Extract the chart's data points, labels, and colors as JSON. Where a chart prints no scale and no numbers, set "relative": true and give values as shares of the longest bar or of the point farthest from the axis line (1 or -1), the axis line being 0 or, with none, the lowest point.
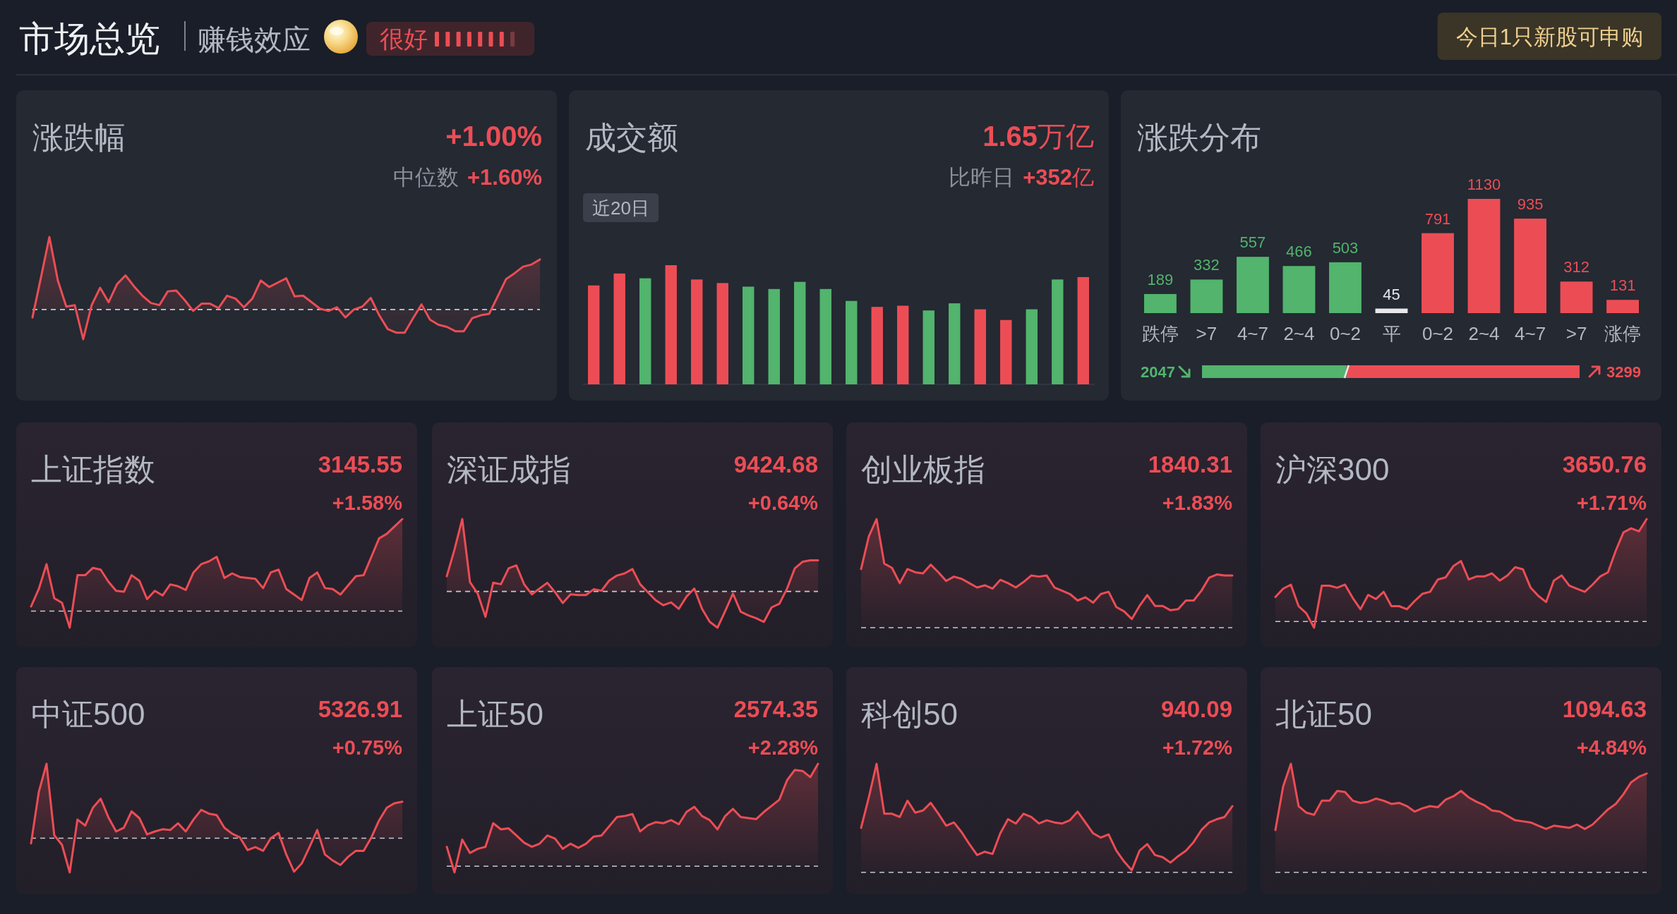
{
  "chart_data": [
    {
      "type": "other",
      "title": "市场总览",
      "annotations": [
        "赚钱效应",
        "很好",
        "今日1只新股可申购"
      ]
    },
    {
      "type": "area",
      "title": "涨跌幅",
      "annotations": [
        "+1.00%",
        "中位数 +1.60%"
      ],
      "relative": true,
      "color": "#ec4d55",
      "ref_lines": [
        {
          "axis": "y",
          "value": 0,
          "line_style": "dashed",
          "color": "#c5c9d0"
        }
      ],
      "categories": [
        null,
        null,
        null,
        null,
        null,
        null,
        null,
        null,
        null,
        null,
        null,
        null,
        null,
        null,
        null,
        null,
        null,
        null,
        null,
        null,
        null,
        null,
        null,
        null,
        null,
        null,
        null,
        null,
        null,
        null,
        null,
        null,
        null,
        null,
        null,
        null,
        null,
        null,
        null,
        null,
        null,
        null,
        null,
        null,
        null,
        null,
        null,
        null,
        null,
        null,
        null,
        null,
        null,
        null,
        null,
        null,
        null,
        null,
        null,
        null,
        null
      ],
      "values": [
        -0.11,
        0.44,
        1.0,
        0.4,
        0.04,
        0.06,
        -0.41,
        0.06,
        0.3,
        0.1,
        0.35,
        0.47,
        0.32,
        0.19,
        0.09,
        0.06,
        0.25,
        0.26,
        0.13,
        -0.02,
        0.08,
        0.08,
        0.02,
        0.19,
        0.15,
        0.03,
        0.15,
        0.4,
        0.31,
        0.37,
        0.43,
        0.18,
        0.19,
        0.1,
        0.01,
        -0.02,
        0.03,
        -0.11,
        0.0,
        0.04,
        0.16,
        -0.08,
        -0.27,
        -0.32,
        -0.32,
        -0.12,
        0.07,
        -0.14,
        -0.21,
        -0.24,
        -0.3,
        -0.3,
        -0.12,
        -0.08,
        -0.06,
        0.18,
        0.42,
        0.5,
        0.59,
        0.62,
        0.69
      ]
    },
    {
      "type": "bar",
      "title": "成交额",
      "annotations": [
        "1.65万亿",
        "比昨日 +352亿",
        "近20日"
      ],
      "relative": true,
      "categories": [
        null,
        null,
        null,
        null,
        null,
        null,
        null,
        null,
        null,
        null,
        null,
        null,
        null,
        null,
        null,
        null,
        null,
        null,
        null,
        null
      ],
      "values": [
        0.83,
        0.93,
        0.89,
        1.0,
        0.88,
        0.85,
        0.82,
        0.8,
        0.86,
        0.8,
        0.7,
        0.65,
        0.66,
        0.62,
        0.68,
        0.63,
        0.54,
        0.63,
        0.88,
        0.9
      ],
      "colors": [
        "#ec4d55",
        "#ec4d55",
        "#52b46d",
        "#ec4d55",
        "#ec4d55",
        "#ec4d55",
        "#52b46d",
        "#52b46d",
        "#52b46d",
        "#52b46d",
        "#52b46d",
        "#ec4d55",
        "#ec4d55",
        "#52b46d",
        "#52b46d",
        "#ec4d55",
        "#ec4d55",
        "#52b46d",
        "#52b46d",
        "#ec4d55"
      ]
    },
    {
      "type": "bar",
      "title": "涨跌分布",
      "data_labels": true,
      "categories": [
        "跌停",
        ">7",
        "4~7",
        "2~4",
        "0~2",
        "平",
        "0~2",
        "2~4",
        "4~7",
        ">7",
        "涨停"
      ],
      "values": [
        189,
        332,
        557,
        466,
        503,
        45,
        791,
        1130,
        935,
        312,
        131
      ],
      "colors": [
        "#52b46d",
        "#52b46d",
        "#52b46d",
        "#52b46d",
        "#52b46d",
        "#e6e8ec",
        "#ec4d55",
        "#ec4d55",
        "#ec4d55",
        "#ec4d55",
        "#ec4d55"
      ]
    },
    {
      "type": "bar",
      "orientation": "horizontal",
      "stacked": true,
      "data_labels": true,
      "categories": [
        null
      ],
      "series": [
        {
          "values": [
            2047
          ],
          "color": "#52b46d"
        },
        {
          "values": [
            3299
          ],
          "color": "#ec4d55"
        }
      ]
    },
    {
      "type": "area",
      "title": "上证指数",
      "annotations": [
        "3145.55",
        "+1.58%"
      ],
      "relative": true,
      "color": "#ec4d55",
      "ref_lines": [
        {
          "axis": "y",
          "value": 0,
          "line_style": "dashed",
          "color": "#c5c9d0"
        }
      ],
      "categories": [
        null,
        null,
        null,
        null,
        null,
        null,
        null,
        null,
        null,
        null,
        null,
        null,
        null,
        null,
        null,
        null,
        null,
        null,
        null,
        null,
        null,
        null,
        null,
        null,
        null,
        null,
        null,
        null,
        null,
        null,
        null,
        null,
        null,
        null,
        null,
        null,
        null,
        null,
        null,
        null,
        null,
        null,
        null,
        null,
        null,
        null,
        null,
        null,
        null
      ],
      "values": [
        0.05,
        0.24,
        0.51,
        0.14,
        0.09,
        -0.18,
        0.39,
        0.39,
        0.47,
        0.45,
        0.32,
        0.22,
        0.21,
        0.39,
        0.33,
        0.13,
        0.22,
        0.17,
        0.29,
        0.27,
        0.23,
        0.42,
        0.51,
        0.54,
        0.59,
        0.36,
        0.41,
        0.37,
        0.36,
        0.35,
        0.25,
        0.42,
        0.45,
        0.24,
        0.18,
        0.12,
        0.36,
        0.42,
        0.25,
        0.24,
        0.18,
        0.28,
        0.38,
        0.39,
        0.59,
        0.79,
        0.84,
        0.92,
        1.0
      ]
    },
    {
      "type": "area",
      "title": "深证成指",
      "annotations": [
        "9424.68",
        "+0.64%"
      ],
      "relative": true,
      "color": "#ec4d55",
      "ref_lines": [
        {
          "axis": "y",
          "value": 0,
          "line_style": "dashed",
          "color": "#c5c9d0"
        }
      ],
      "categories": [
        null,
        null,
        null,
        null,
        null,
        null,
        null,
        null,
        null,
        null,
        null,
        null,
        null,
        null,
        null,
        null,
        null,
        null,
        null,
        null,
        null,
        null,
        null,
        null,
        null,
        null,
        null,
        null,
        null,
        null,
        null,
        null,
        null,
        null,
        null,
        null,
        null,
        null,
        null,
        null,
        null,
        null,
        null,
        null,
        null,
        null,
        null,
        null,
        null
      ],
      "values": [
        0.21,
        0.58,
        1.0,
        0.13,
        -0.03,
        -0.35,
        0.12,
        0.1,
        0.32,
        0.36,
        0.1,
        -0.04,
        0.04,
        0.12,
        -0.01,
        -0.16,
        -0.04,
        -0.05,
        -0.05,
        0.03,
        0.01,
        0.15,
        0.22,
        0.25,
        0.31,
        0.1,
        -0.01,
        -0.12,
        -0.19,
        -0.15,
        -0.24,
        -0.07,
        0.04,
        -0.24,
        -0.42,
        -0.5,
        -0.27,
        -0.03,
        -0.28,
        -0.33,
        -0.37,
        -0.42,
        -0.22,
        -0.17,
        0.04,
        0.32,
        0.41,
        0.43,
        0.43
      ]
    },
    {
      "type": "area",
      "title": "创业板指",
      "annotations": [
        "1840.31",
        "+1.83%"
      ],
      "relative": true,
      "color": "#ec4d55",
      "ref_lines": [
        {
          "axis": "y",
          "value": 0,
          "line_style": "dashed",
          "color": "#c5c9d0"
        }
      ],
      "categories": [
        null,
        null,
        null,
        null,
        null,
        null,
        null,
        null,
        null,
        null,
        null,
        null,
        null,
        null,
        null,
        null,
        null,
        null,
        null,
        null,
        null,
        null,
        null,
        null,
        null,
        null,
        null,
        null,
        null,
        null,
        null,
        null,
        null,
        null,
        null,
        null,
        null,
        null,
        null,
        null,
        null,
        null,
        null,
        null,
        null,
        null,
        null,
        null,
        null
      ],
      "values": [
        0.54,
        0.84,
        1.0,
        0.59,
        0.55,
        0.41,
        0.54,
        0.51,
        0.5,
        0.58,
        0.51,
        0.43,
        0.47,
        0.45,
        0.41,
        0.37,
        0.39,
        0.36,
        0.44,
        0.41,
        0.37,
        0.42,
        0.48,
        0.47,
        0.48,
        0.37,
        0.34,
        0.31,
        0.25,
        0.28,
        0.23,
        0.31,
        0.33,
        0.19,
        0.15,
        0.08,
        0.2,
        0.3,
        0.2,
        0.2,
        0.16,
        0.17,
        0.25,
        0.25,
        0.34,
        0.46,
        0.49,
        0.48,
        0.48
      ]
    },
    {
      "type": "area",
      "title": "沪深300",
      "annotations": [
        "3650.76",
        "+1.71%"
      ],
      "relative": true,
      "color": "#ec4d55",
      "ref_lines": [
        {
          "axis": "y",
          "value": 0,
          "line_style": "dashed",
          "color": "#c5c9d0"
        }
      ],
      "categories": [
        null,
        null,
        null,
        null,
        null,
        null,
        null,
        null,
        null,
        null,
        null,
        null,
        null,
        null,
        null,
        null,
        null,
        null,
        null,
        null,
        null,
        null,
        null,
        null,
        null,
        null,
        null,
        null,
        null,
        null,
        null,
        null,
        null,
        null,
        null,
        null,
        null,
        null,
        null,
        null,
        null,
        null,
        null,
        null,
        null,
        null,
        null,
        null,
        null
      ],
      "values": [
        0.24,
        0.32,
        0.36,
        0.15,
        0.08,
        -0.06,
        0.35,
        0.35,
        0.33,
        0.36,
        0.23,
        0.12,
        0.26,
        0.22,
        0.29,
        0.15,
        0.15,
        0.12,
        0.2,
        0.27,
        0.29,
        0.41,
        0.43,
        0.54,
        0.59,
        0.41,
        0.44,
        0.44,
        0.47,
        0.4,
        0.45,
        0.53,
        0.51,
        0.33,
        0.25,
        0.19,
        0.4,
        0.45,
        0.35,
        0.32,
        0.29,
        0.36,
        0.44,
        0.48,
        0.69,
        0.87,
        0.91,
        0.88,
        1.0
      ]
    },
    {
      "type": "area",
      "title": "中证500",
      "annotations": [
        "5326.91",
        "+0.75%"
      ],
      "relative": true,
      "color": "#ec4d55",
      "ref_lines": [
        {
          "axis": "y",
          "value": 0,
          "line_style": "dashed",
          "color": "#c5c9d0"
        }
      ],
      "categories": [
        null,
        null,
        null,
        null,
        null,
        null,
        null,
        null,
        null,
        null,
        null,
        null,
        null,
        null,
        null,
        null,
        null,
        null,
        null,
        null,
        null,
        null,
        null,
        null,
        null,
        null,
        null,
        null,
        null,
        null,
        null,
        null,
        null,
        null,
        null,
        null,
        null,
        null,
        null,
        null,
        null,
        null,
        null,
        null,
        null,
        null,
        null,
        null,
        null
      ],
      "values": [
        -0.07,
        0.62,
        1.0,
        0.04,
        -0.09,
        -0.46,
        0.25,
        0.17,
        0.41,
        0.53,
        0.28,
        0.09,
        0.14,
        0.36,
        0.27,
        0.05,
        0.09,
        0.12,
        0.11,
        0.2,
        0.09,
        0.25,
        0.38,
        0.33,
        0.31,
        0.14,
        0.06,
        0.01,
        -0.16,
        -0.12,
        -0.17,
        0.0,
        0.07,
        -0.22,
        -0.45,
        -0.34,
        -0.12,
        0.11,
        -0.22,
        -0.3,
        -0.36,
        -0.25,
        -0.17,
        -0.17,
        0.01,
        0.24,
        0.41,
        0.47,
        0.49
      ]
    },
    {
      "type": "area",
      "title": "上证50",
      "annotations": [
        "2574.35",
        "+2.28%"
      ],
      "relative": true,
      "color": "#ec4d55",
      "ref_lines": [
        {
          "axis": "y",
          "value": 0,
          "line_style": "dashed",
          "color": "#c5c9d0"
        }
      ],
      "categories": [
        null,
        null,
        null,
        null,
        null,
        null,
        null,
        null,
        null,
        null,
        null,
        null,
        null,
        null,
        null,
        null,
        null,
        null,
        null,
        null,
        null,
        null,
        null,
        null,
        null,
        null,
        null,
        null,
        null,
        null,
        null,
        null,
        null,
        null,
        null,
        null,
        null,
        null,
        null,
        null,
        null,
        null,
        null,
        null,
        null,
        null,
        null,
        null,
        null
      ],
      "values": [
        0.19,
        -0.06,
        0.26,
        0.13,
        0.17,
        0.19,
        0.42,
        0.36,
        0.37,
        0.3,
        0.23,
        0.19,
        0.22,
        0.3,
        0.27,
        0.17,
        0.22,
        0.18,
        0.22,
        0.29,
        0.3,
        0.39,
        0.48,
        0.49,
        0.51,
        0.34,
        0.4,
        0.43,
        0.42,
        0.45,
        0.41,
        0.53,
        0.58,
        0.49,
        0.45,
        0.36,
        0.49,
        0.56,
        0.48,
        0.47,
        0.46,
        0.53,
        0.59,
        0.65,
        0.84,
        0.94,
        0.93,
        0.87,
        1.0
      ]
    },
    {
      "type": "area",
      "title": "科创50",
      "annotations": [
        "940.09",
        "+1.72%"
      ],
      "relative": true,
      "color": "#ec4d55",
      "ref_lines": [
        {
          "axis": "y",
          "value": 0,
          "line_style": "dashed",
          "color": "#c5c9d0"
        }
      ],
      "categories": [
        null,
        null,
        null,
        null,
        null,
        null,
        null,
        null,
        null,
        null,
        null,
        null,
        null,
        null,
        null,
        null,
        null,
        null,
        null,
        null,
        null,
        null,
        null,
        null,
        null,
        null,
        null,
        null,
        null,
        null,
        null,
        null,
        null,
        null,
        null,
        null,
        null,
        null,
        null,
        null,
        null,
        null,
        null,
        null,
        null,
        null,
        null,
        null,
        null
      ],
      "values": [
        0.41,
        0.69,
        1.0,
        0.54,
        0.54,
        0.51,
        0.66,
        0.55,
        0.57,
        0.64,
        0.54,
        0.43,
        0.46,
        0.37,
        0.26,
        0.16,
        0.19,
        0.17,
        0.36,
        0.49,
        0.45,
        0.54,
        0.51,
        0.45,
        0.48,
        0.46,
        0.45,
        0.48,
        0.56,
        0.46,
        0.36,
        0.32,
        0.35,
        0.2,
        0.1,
        0.02,
        0.2,
        0.26,
        0.16,
        0.14,
        0.09,
        0.15,
        0.2,
        0.28,
        0.39,
        0.46,
        0.49,
        0.51,
        0.61
      ]
    },
    {
      "type": "area",
      "title": "北证50",
      "annotations": [
        "1094.63",
        "+4.84%"
      ],
      "relative": true,
      "color": "#ec4d55",
      "ref_lines": [
        {
          "axis": "y",
          "value": 0,
          "line_style": "dashed",
          "color": "#c5c9d0"
        }
      ],
      "categories": [
        null,
        null,
        null,
        null,
        null,
        null,
        null,
        null,
        null,
        null,
        null,
        null,
        null,
        null,
        null,
        null,
        null,
        null,
        null,
        null,
        null,
        null,
        null,
        null,
        null,
        null,
        null,
        null,
        null,
        null,
        null,
        null,
        null,
        null,
        null,
        null,
        null,
        null,
        null,
        null,
        null,
        null,
        null,
        null,
        null,
        null,
        null,
        null,
        null
      ],
      "values": [
        0.39,
        0.79,
        1.0,
        0.61,
        0.55,
        0.53,
        0.66,
        0.66,
        0.75,
        0.74,
        0.66,
        0.64,
        0.65,
        0.68,
        0.66,
        0.63,
        0.64,
        0.61,
        0.56,
        0.59,
        0.61,
        0.6,
        0.67,
        0.7,
        0.75,
        0.69,
        0.65,
        0.62,
        0.57,
        0.56,
        0.52,
        0.48,
        0.47,
        0.46,
        0.43,
        0.4,
        0.43,
        0.42,
        0.41,
        0.44,
        0.4,
        0.44,
        0.51,
        0.58,
        0.63,
        0.72,
        0.83,
        0.88,
        0.91
      ]
    }
  ]
}
